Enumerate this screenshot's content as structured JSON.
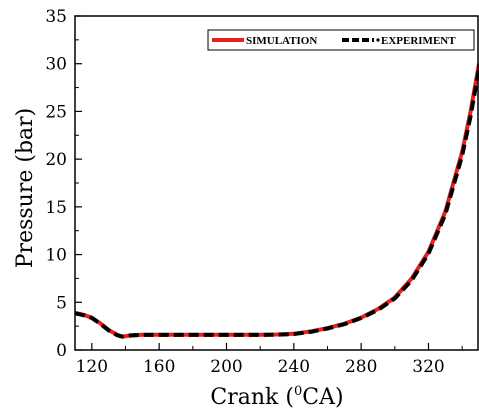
{
  "chart_data": {
    "type": "line",
    "xlabel_main": "Crank (",
    "xlabel_sup": "0",
    "xlabel_end": "CA)",
    "ylabel": "Pressure (bar)",
    "xlim": [
      110,
      350
    ],
    "ylim": [
      0,
      35
    ],
    "x_ticks": [
      120,
      160,
      200,
      240,
      280,
      320
    ],
    "y_ticks": [
      0,
      5,
      10,
      15,
      20,
      25,
      30,
      35
    ],
    "legend_position": "top-right",
    "series": [
      {
        "name": "SIMULATION",
        "color": "#e8201f",
        "style": "solid",
        "points": [
          [
            110,
            3.9
          ],
          [
            115,
            3.7
          ],
          [
            120,
            3.4
          ],
          [
            125,
            2.8
          ],
          [
            130,
            2.1
          ],
          [
            135,
            1.6
          ],
          [
            138,
            1.4
          ],
          [
            140,
            1.45
          ],
          [
            143,
            1.55
          ],
          [
            150,
            1.6
          ],
          [
            160,
            1.6
          ],
          [
            180,
            1.6
          ],
          [
            200,
            1.6
          ],
          [
            220,
            1.6
          ],
          [
            230,
            1.62
          ],
          [
            240,
            1.7
          ],
          [
            250,
            1.95
          ],
          [
            260,
            2.3
          ],
          [
            270,
            2.75
          ],
          [
            280,
            3.4
          ],
          [
            290,
            4.3
          ],
          [
            300,
            5.5
          ],
          [
            310,
            7.5
          ],
          [
            320,
            10.3
          ],
          [
            330,
            14.5
          ],
          [
            340,
            20.8
          ],
          [
            345,
            25
          ],
          [
            350,
            30
          ]
        ]
      },
      {
        "name": "EXPERIMENT",
        "color": "#000000",
        "style": "dashed",
        "points": [
          [
            110,
            3.85
          ],
          [
            115,
            3.65
          ],
          [
            120,
            3.35
          ],
          [
            125,
            2.75
          ],
          [
            130,
            2.05
          ],
          [
            135,
            1.55
          ],
          [
            138,
            1.4
          ],
          [
            140,
            1.42
          ],
          [
            143,
            1.52
          ],
          [
            150,
            1.58
          ],
          [
            160,
            1.58
          ],
          [
            180,
            1.58
          ],
          [
            200,
            1.58
          ],
          [
            220,
            1.58
          ],
          [
            230,
            1.6
          ],
          [
            240,
            1.68
          ],
          [
            250,
            1.9
          ],
          [
            260,
            2.25
          ],
          [
            270,
            2.7
          ],
          [
            280,
            3.35
          ],
          [
            290,
            4.2
          ],
          [
            300,
            5.4
          ],
          [
            310,
            7.3
          ],
          [
            320,
            10.1
          ],
          [
            330,
            14.2
          ],
          [
            340,
            20.4
          ],
          [
            345,
            24.5
          ],
          [
            350,
            29.5
          ]
        ]
      }
    ]
  }
}
